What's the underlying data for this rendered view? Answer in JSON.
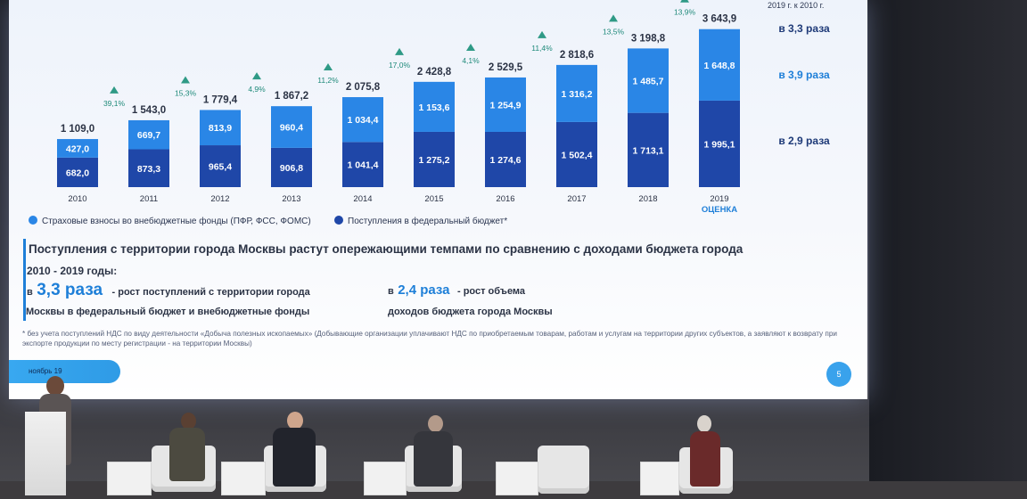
{
  "corner_note": "2019 г. к 2010 г.",
  "chart_data": {
    "type": "bar",
    "stacked": true,
    "categories": [
      "2010",
      "2011",
      "2012",
      "2013",
      "2014",
      "2015",
      "2016",
      "2017",
      "2018",
      "2019"
    ],
    "extra_category_label": "ОЦЕНКА",
    "totals": [
      "1 109,0",
      "1 543,0",
      "1 779,4",
      "1 867,2",
      "2 075,8",
      "2 428,8",
      "2 529,5",
      "2 818,6",
      "3 198,8",
      "3 643,9"
    ],
    "growth": [
      "",
      "39,1%",
      "15,3%",
      "4,9%",
      "11,2%",
      "17,0%",
      "4,1%",
      "11,4%",
      "13,5%",
      "13,9%"
    ],
    "series": [
      {
        "name": "Поступления в федеральный бюджет*",
        "color": "#1f47a8",
        "values": [
          682.0,
          873.3,
          965.4,
          906.8,
          1041.4,
          1275.2,
          1274.6,
          1502.4,
          1713.1,
          1995.1
        ],
        "labels": [
          "682,0",
          "873,3",
          "965,4",
          "906,8",
          "1 041,4",
          "1 275,2",
          "1 274,6",
          "1 502,4",
          "1 713,1",
          "1 995,1"
        ]
      },
      {
        "name": "Страховые взносы во внебюджетные фонды (ПФР, ФСС, ФОМС)",
        "color": "#2a86e6",
        "values": [
          427.0,
          669.7,
          813.9,
          960.4,
          1034.4,
          1153.6,
          1254.9,
          1316.2,
          1485.7,
          1648.8
        ],
        "labels": [
          "427,0",
          "669,7",
          "813,9",
          "960,4",
          "1 034,4",
          "1 153,6",
          "1 254,9",
          "1 316,2",
          "1 485,7",
          "1 648,8"
        ]
      }
    ],
    "ratios": [
      "в 3,3 раза",
      "в 3,9 раза",
      "в 2,9 раза"
    ],
    "ylim": [
      0,
      3700
    ],
    "legend_position": "bottom-left"
  },
  "headline": "Поступления с территории города Москвы растут опережающими темпами по сравнению с доходами бюджета города",
  "period": "2010 - 2019 годы:",
  "stat1": {
    "prefix": "в",
    "value": "3,3 раза",
    "text1": "- рост поступлений с территории города",
    "text2": "Москвы в федеральный бюджет и внебюджетные фонды"
  },
  "stat2": {
    "prefix": "в",
    "value": "2,4 раза",
    "text1": "- рост объема",
    "text2": "доходов бюджета города Москвы"
  },
  "footnote": "* без учета поступлений НДС по виду деятельности «Добыча полезных ископаемых» (Добывающие организации уплачивают НДС по приобретаемым товарам, работам и услугам на территории других субъектов, а заявляют к возврату при экспорте продукции по месту регистрации - на территории Москвы)",
  "month_label": "ноябрь 19",
  "page_number": "5",
  "colors": {
    "accent": "#1e7fd8",
    "dark_bar": "#1f47a8",
    "light_bar": "#2a86e6",
    "triangle": "#2f9a86"
  }
}
